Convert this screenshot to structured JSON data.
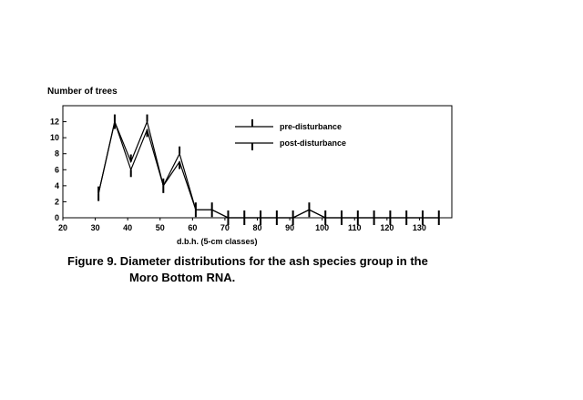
{
  "figure": {
    "caption_line1": "Figure 9.  Diameter distributions for the ash species group in the",
    "caption_line2": "Moro Bottom RNA."
  },
  "chart_data": {
    "type": "line",
    "title": "",
    "xlabel": "d.b.h. (5-cm classes)",
    "ylabel": "Number of trees",
    "xlim": [
      20,
      140
    ],
    "ylim": [
      0,
      14
    ],
    "x_ticks": [
      20,
      30,
      40,
      50,
      60,
      70,
      80,
      90,
      100,
      110,
      120,
      130
    ],
    "y_ticks": [
      0,
      2,
      4,
      6,
      8,
      10,
      12
    ],
    "grid": false,
    "legend_position": "top-right",
    "x": [
      31,
      36,
      41,
      46,
      51,
      56,
      61,
      66,
      71,
      76,
      81,
      86,
      91,
      96,
      101,
      106,
      111,
      116,
      121,
      126,
      131,
      136
    ],
    "series": [
      {
        "name": "pre-disturbance",
        "marker": "tick-up",
        "values": [
          3,
          12,
          7,
          12,
          4,
          8,
          1,
          1,
          0,
          0,
          0,
          0,
          0,
          1,
          0,
          0,
          0,
          0,
          0,
          0,
          0,
          0
        ]
      },
      {
        "name": "post-disturbance",
        "marker": "tick-down",
        "values": [
          3,
          12,
          6,
          11,
          4,
          7,
          1,
          1,
          0,
          0,
          0,
          0,
          0,
          1,
          0,
          0,
          0,
          0,
          0,
          0,
          0,
          0
        ]
      }
    ]
  }
}
